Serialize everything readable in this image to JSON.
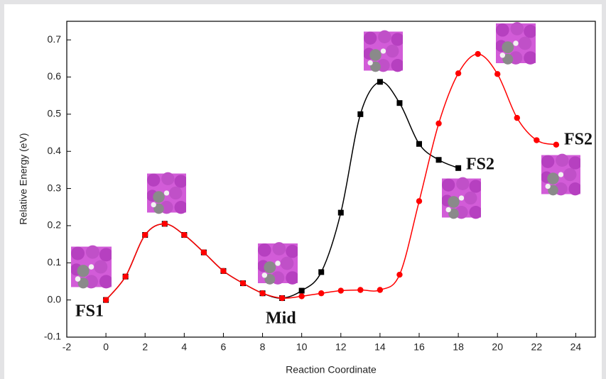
{
  "chart_data": {
    "type": "line",
    "x_label": "Reaction Coordinate",
    "y_label": "Relative Energy (eV)",
    "xlim": [
      -2,
      25
    ],
    "ylim": [
      -0.1,
      0.75
    ],
    "xticks": [
      -2,
      0,
      2,
      4,
      6,
      8,
      10,
      12,
      14,
      16,
      18,
      20,
      22,
      24
    ],
    "yticks": [
      -0.1,
      {
        "value": 0,
        "label": "0.0"
      },
      0.1,
      0.2,
      0.3,
      0.4,
      0.5,
      0.6,
      0.7
    ],
    "series": [
      {
        "color": "#000000",
        "marker": "square",
        "x": [
          0,
          1,
          2,
          3,
          4,
          5,
          6,
          7,
          8,
          9,
          10,
          11,
          12,
          13,
          14,
          15,
          16,
          17,
          18
        ],
        "values": [
          0,
          0.063,
          0.175,
          0.205,
          0.175,
          0.128,
          0.078,
          0.045,
          0.018,
          0.005,
          0.025,
          0.075,
          0.235,
          0.5,
          0.587,
          0.53,
          0.42,
          0.377,
          0.355
        ]
      },
      {
        "color": "#ff0000",
        "marker": "circle",
        "x": [
          0,
          1,
          2,
          3,
          4,
          5,
          6,
          7,
          8,
          9,
          10,
          11,
          12,
          13,
          14,
          15,
          16,
          17,
          18,
          19,
          20,
          21,
          22,
          23
        ],
        "values": [
          0,
          0.063,
          0.175,
          0.205,
          0.175,
          0.128,
          0.078,
          0.045,
          0.018,
          0.005,
          0.01,
          0.018,
          0.025,
          0.027,
          0.027,
          0.068,
          0.266,
          0.475,
          0.61,
          0.662,
          0.608,
          0.49,
          0.43,
          0.418
        ]
      }
    ],
    "annotations": [
      "FS1",
      "Mid",
      "FS2",
      "FS2"
    ]
  }
}
